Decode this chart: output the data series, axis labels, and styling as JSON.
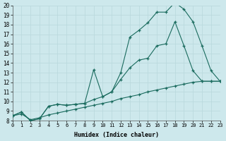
{
  "xlabel": "Humidex (Indice chaleur)",
  "bg_color": "#cde8ec",
  "line_color": "#1a6b5e",
  "grid_color": "#b8d8dc",
  "xlim": [
    0,
    23
  ],
  "ylim": [
    8,
    20
  ],
  "xticks": [
    0,
    1,
    2,
    3,
    4,
    5,
    6,
    7,
    8,
    9,
    10,
    11,
    12,
    13,
    14,
    15,
    16,
    17,
    18,
    19,
    20,
    21,
    22,
    23
  ],
  "yticks": [
    8,
    9,
    10,
    11,
    12,
    13,
    14,
    15,
    16,
    17,
    18,
    19,
    20
  ],
  "line1_x": [
    0,
    1,
    2,
    3,
    4,
    5,
    6,
    7,
    8,
    9,
    10,
    11,
    12,
    13,
    14,
    15,
    16,
    17,
    18,
    19,
    20,
    21,
    22,
    23
  ],
  "line1_y": [
    8.5,
    8.9,
    8.0,
    8.2,
    9.5,
    9.7,
    9.6,
    9.7,
    9.8,
    10.2,
    10.5,
    11.0,
    12.3,
    13.5,
    14.3,
    14.5,
    15.8,
    16.0,
    18.3,
    15.8,
    13.2,
    12.1,
    12.1,
    12.1
  ],
  "line2_x": [
    0,
    1,
    2,
    3,
    4,
    5,
    6,
    7,
    8,
    9,
    10,
    11,
    12,
    13,
    14,
    15,
    16,
    17,
    18,
    19,
    20,
    21,
    22,
    23
  ],
  "line2_y": [
    8.5,
    8.9,
    8.0,
    8.2,
    9.5,
    9.7,
    9.6,
    9.7,
    9.8,
    13.3,
    10.5,
    11.0,
    13.0,
    16.7,
    17.4,
    18.2,
    19.3,
    19.3,
    20.3,
    19.6,
    18.3,
    15.8,
    13.2,
    12.1
  ],
  "line3_x": [
    0,
    1,
    2,
    3,
    4,
    5,
    6,
    7,
    8,
    9,
    10,
    11,
    12,
    13,
    14,
    15,
    16,
    17,
    18,
    19,
    20,
    21,
    22,
    23
  ],
  "line3_y": [
    8.5,
    8.7,
    8.1,
    8.3,
    8.6,
    8.8,
    9.0,
    9.2,
    9.4,
    9.6,
    9.8,
    10.0,
    10.3,
    10.5,
    10.7,
    11.0,
    11.2,
    11.4,
    11.6,
    11.8,
    12.0,
    12.1,
    12.1,
    12.1
  ]
}
